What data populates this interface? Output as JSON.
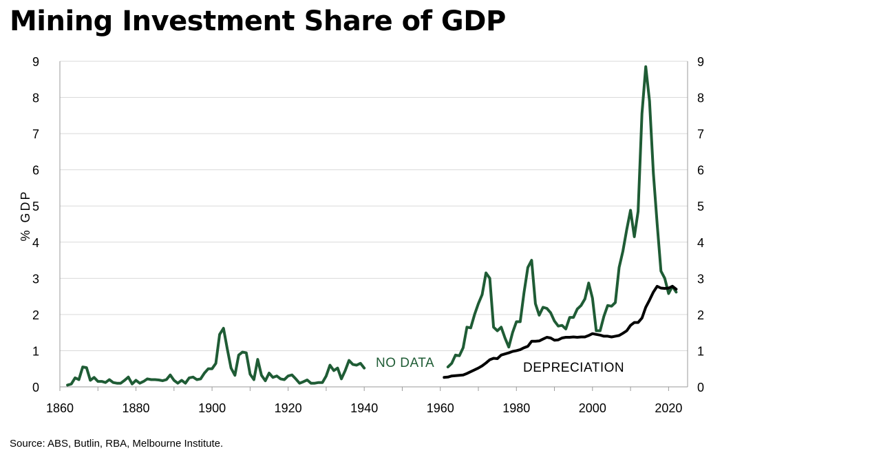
{
  "title": "Mining Investment Share of GDP",
  "source": "Source: ABS, Butlin, RBA, Melbourne Institute.",
  "chart_data": {
    "type": "line",
    "ylabel": "% GDP",
    "xlim": [
      1860,
      2025
    ],
    "ylim": [
      0,
      9
    ],
    "x_ticks": [
      "1860",
      "1880",
      "1900",
      "1920",
      "1940",
      "1960",
      "1980",
      "2000",
      "2020"
    ],
    "y_ticks": [
      "0",
      "1",
      "2",
      "3",
      "4",
      "5",
      "6",
      "7",
      "8",
      "9"
    ],
    "grid": true,
    "annotations": [
      {
        "text": "NO DATA",
        "color": "#1f5c35"
      },
      {
        "text": "DEPRECIATION",
        "color": "#000000"
      }
    ],
    "series": [
      {
        "color": "#1f5c35",
        "segments": [
          [
            [
              1862,
              0.05
            ],
            [
              1863,
              0.08
            ],
            [
              1864,
              0.25
            ],
            [
              1865,
              0.2
            ],
            [
              1866,
              0.55
            ],
            [
              1867,
              0.53
            ],
            [
              1868,
              0.18
            ],
            [
              1869,
              0.26
            ],
            [
              1870,
              0.15
            ],
            [
              1871,
              0.15
            ],
            [
              1872,
              0.12
            ],
            [
              1873,
              0.2
            ],
            [
              1874,
              0.12
            ],
            [
              1875,
              0.1
            ],
            [
              1876,
              0.1
            ],
            [
              1877,
              0.18
            ],
            [
              1878,
              0.27
            ],
            [
              1879,
              0.08
            ],
            [
              1880,
              0.18
            ],
            [
              1881,
              0.1
            ],
            [
              1882,
              0.15
            ],
            [
              1883,
              0.22
            ],
            [
              1884,
              0.2
            ],
            [
              1885,
              0.2
            ],
            [
              1886,
              0.19
            ],
            [
              1887,
              0.17
            ],
            [
              1888,
              0.2
            ],
            [
              1889,
              0.33
            ],
            [
              1890,
              0.18
            ],
            [
              1891,
              0.1
            ],
            [
              1892,
              0.18
            ],
            [
              1893,
              0.1
            ],
            [
              1894,
              0.25
            ],
            [
              1895,
              0.27
            ],
            [
              1896,
              0.2
            ],
            [
              1897,
              0.22
            ],
            [
              1898,
              0.38
            ],
            [
              1899,
              0.5
            ],
            [
              1900,
              0.5
            ],
            [
              1901,
              0.65
            ],
            [
              1902,
              1.45
            ],
            [
              1903,
              1.62
            ],
            [
              1904,
              1.05
            ],
            [
              1905,
              0.52
            ],
            [
              1906,
              0.32
            ],
            [
              1907,
              0.88
            ],
            [
              1908,
              0.96
            ],
            [
              1909,
              0.94
            ],
            [
              1910,
              0.35
            ],
            [
              1911,
              0.2
            ],
            [
              1912,
              0.76
            ],
            [
              1913,
              0.32
            ],
            [
              1914,
              0.17
            ],
            [
              1915,
              0.38
            ],
            [
              1916,
              0.26
            ],
            [
              1917,
              0.3
            ],
            [
              1918,
              0.22
            ],
            [
              1919,
              0.2
            ],
            [
              1920,
              0.3
            ],
            [
              1921,
              0.33
            ],
            [
              1922,
              0.22
            ],
            [
              1923,
              0.1
            ],
            [
              1924,
              0.14
            ],
            [
              1925,
              0.19
            ],
            [
              1926,
              0.1
            ],
            [
              1927,
              0.1
            ],
            [
              1928,
              0.12
            ],
            [
              1929,
              0.12
            ],
            [
              1930,
              0.3
            ],
            [
              1931,
              0.6
            ],
            [
              1932,
              0.45
            ],
            [
              1933,
              0.52
            ],
            [
              1934,
              0.22
            ],
            [
              1935,
              0.45
            ],
            [
              1936,
              0.73
            ],
            [
              1937,
              0.62
            ],
            [
              1938,
              0.6
            ],
            [
              1939,
              0.65
            ],
            [
              1940,
              0.52
            ]
          ],
          [
            [
              1962,
              0.55
            ],
            [
              1963,
              0.65
            ],
            [
              1964,
              0.88
            ],
            [
              1965,
              0.86
            ],
            [
              1966,
              1.08
            ],
            [
              1967,
              1.65
            ],
            [
              1968,
              1.63
            ],
            [
              1969,
              2.0
            ],
            [
              1970,
              2.3
            ],
            [
              1971,
              2.55
            ],
            [
              1972,
              3.15
            ],
            [
              1973,
              3.0
            ],
            [
              1974,
              1.65
            ],
            [
              1975,
              1.55
            ],
            [
              1976,
              1.65
            ],
            [
              1977,
              1.35
            ],
            [
              1978,
              1.1
            ],
            [
              1979,
              1.5
            ],
            [
              1980,
              1.8
            ],
            [
              1981,
              1.8
            ],
            [
              1982,
              2.6
            ],
            [
              1983,
              3.3
            ],
            [
              1984,
              3.5
            ],
            [
              1985,
              2.3
            ],
            [
              1986,
              1.98
            ],
            [
              1987,
              2.2
            ],
            [
              1988,
              2.17
            ],
            [
              1989,
              2.05
            ],
            [
              1990,
              1.82
            ],
            [
              1991,
              1.68
            ],
            [
              1992,
              1.7
            ],
            [
              1993,
              1.6
            ],
            [
              1994,
              1.92
            ],
            [
              1995,
              1.92
            ],
            [
              1996,
              2.15
            ],
            [
              1997,
              2.25
            ],
            [
              1998,
              2.43
            ],
            [
              1999,
              2.87
            ],
            [
              2000,
              2.45
            ],
            [
              2001,
              1.55
            ],
            [
              2002,
              1.55
            ],
            [
              2003,
              1.95
            ],
            [
              2004,
              2.25
            ],
            [
              2005,
              2.23
            ],
            [
              2006,
              2.33
            ],
            [
              2007,
              3.3
            ],
            [
              2008,
              3.75
            ],
            [
              2009,
              4.35
            ],
            [
              2010,
              4.88
            ],
            [
              2011,
              4.15
            ],
            [
              2012,
              4.85
            ],
            [
              2013,
              7.55
            ],
            [
              2014,
              8.85
            ],
            [
              2015,
              7.9
            ],
            [
              2016,
              5.9
            ],
            [
              2017,
              4.5
            ],
            [
              2018,
              3.2
            ],
            [
              2019,
              3.0
            ],
            [
              2020,
              2.58
            ],
            [
              2021,
              2.78
            ],
            [
              2022,
              2.62
            ]
          ]
        ]
      },
      {
        "name": "DEPRECIATION",
        "color": "#000000",
        "segments": [
          [
            [
              1961,
              0.26
            ],
            [
              1962,
              0.27
            ],
            [
              1963,
              0.3
            ],
            [
              1964,
              0.31
            ],
            [
              1965,
              0.32
            ],
            [
              1966,
              0.33
            ],
            [
              1967,
              0.37
            ],
            [
              1968,
              0.42
            ],
            [
              1969,
              0.47
            ],
            [
              1970,
              0.52
            ],
            [
              1971,
              0.58
            ],
            [
              1972,
              0.66
            ],
            [
              1973,
              0.75
            ],
            [
              1974,
              0.79
            ],
            [
              1975,
              0.78
            ],
            [
              1976,
              0.88
            ],
            [
              1977,
              0.91
            ],
            [
              1978,
              0.94
            ],
            [
              1979,
              0.98
            ],
            [
              1980,
              1.0
            ],
            [
              1981,
              1.03
            ],
            [
              1982,
              1.08
            ],
            [
              1983,
              1.12
            ],
            [
              1984,
              1.26
            ],
            [
              1985,
              1.26
            ],
            [
              1986,
              1.27
            ],
            [
              1987,
              1.32
            ],
            [
              1988,
              1.37
            ],
            [
              1989,
              1.35
            ],
            [
              1990,
              1.29
            ],
            [
              1991,
              1.3
            ],
            [
              1992,
              1.35
            ],
            [
              1993,
              1.37
            ],
            [
              1994,
              1.37
            ],
            [
              1995,
              1.38
            ],
            [
              1996,
              1.37
            ],
            [
              1997,
              1.38
            ],
            [
              1998,
              1.38
            ],
            [
              1999,
              1.42
            ],
            [
              2000,
              1.47
            ],
            [
              2001,
              1.45
            ],
            [
              2002,
              1.43
            ],
            [
              2003,
              1.4
            ],
            [
              2004,
              1.4
            ],
            [
              2005,
              1.38
            ],
            [
              2006,
              1.4
            ],
            [
              2007,
              1.42
            ],
            [
              2008,
              1.48
            ],
            [
              2009,
              1.55
            ],
            [
              2010,
              1.7
            ],
            [
              2011,
              1.78
            ],
            [
              2012,
              1.78
            ],
            [
              2013,
              1.9
            ],
            [
              2014,
              2.2
            ],
            [
              2015,
              2.4
            ],
            [
              2016,
              2.62
            ],
            [
              2017,
              2.78
            ],
            [
              2018,
              2.73
            ],
            [
              2019,
              2.72
            ],
            [
              2020,
              2.73
            ],
            [
              2021,
              2.78
            ],
            [
              2022,
              2.7
            ]
          ]
        ]
      }
    ]
  }
}
